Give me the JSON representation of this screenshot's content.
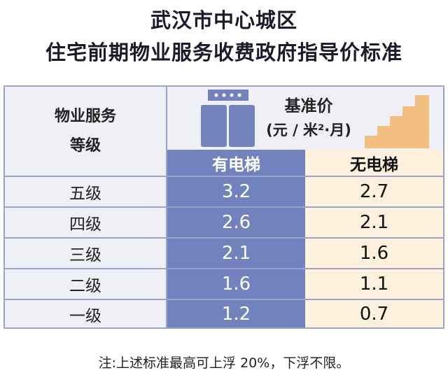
{
  "title_line1": "武汉市中心城区",
  "title_line2": "住宅前期物业服务收费政府指导价标准",
  "chart_data": {
    "type": "table",
    "row_header_line1": "物业服务",
    "row_header_line2": "等级",
    "price_header_line1": "基准价",
    "price_header_line2": "(元 / 米²·月)",
    "columns": [
      "有电梯",
      "无电梯"
    ],
    "rows": [
      {
        "level": "五级",
        "values": [
          "3.2",
          "2.7"
        ]
      },
      {
        "level": "四级",
        "values": [
          "2.6",
          "2.1"
        ]
      },
      {
        "level": "三级",
        "values": [
          "2.1",
          "1.6"
        ]
      },
      {
        "level": "二级",
        "values": [
          "1.6",
          "1.1"
        ]
      },
      {
        "level": "一级",
        "values": [
          "1.2",
          "0.7"
        ]
      }
    ]
  },
  "note": "注:上述标准最高可上浮 20%，下浮不限。",
  "colors": {
    "elevator": "#7282bd",
    "no_elevator": "#fdf0dc",
    "stairs": "#f2bf80"
  },
  "icons": [
    "elevator-icon",
    "stairs-icon"
  ]
}
